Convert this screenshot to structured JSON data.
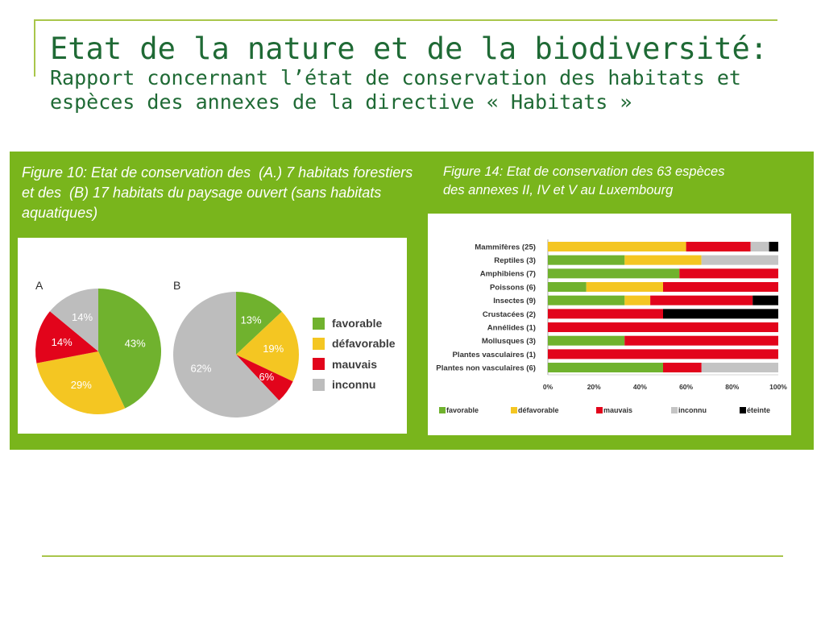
{
  "slide": {
    "title": "Etat de la nature et de la biodiversité:",
    "subtitle_lines": [
      "Rapport concernant l’état de conservation des habitats et",
      "espèces des annexes de la directive « Habitats »"
    ]
  },
  "colors": {
    "title": "#1f6a35",
    "rule": "#a9c64b",
    "panel": "#79b51c"
  },
  "chart_data": [
    {
      "type": "pie",
      "title_lines": [
        "Figure 10: Etat de conservation des  (A.) 7 habitats forestiers",
        "et des  (B) 17 habitats du paysage ouvert (sans habitats",
        "aquatiques)"
      ],
      "categories": [
        "favorable",
        "défavorable",
        "mauvais",
        "inconnu"
      ],
      "colors": [
        "#70b22e",
        "#f4c622",
        "#e2041b",
        "#bdbdbd"
      ],
      "series": [
        {
          "name": "A",
          "values": [
            43,
            29,
            14,
            14
          ],
          "value_labels": [
            "43%",
            "29%",
            "14%",
            "14%"
          ]
        },
        {
          "name": "B",
          "values": [
            13,
            19,
            6,
            62
          ],
          "value_labels": [
            "13%",
            "19%",
            "6%",
            "62%"
          ]
        }
      ],
      "legend": "right"
    },
    {
      "type": "bar",
      "horizontal": true,
      "stacked": true,
      "title_lines": [
        "Figure 14: Etat de conservation des 63 espèces",
        "des annexes II, IV et V au Luxembourg"
      ],
      "categories": [
        "Mammifères (25)",
        "Reptiles (3)",
        "Amphibiens (7)",
        "Poissons (6)",
        "Insectes (9)",
        "Crustacées (2)",
        "Annélides (1)",
        "Mollusques (3)",
        "Plantes vasculaires (1)",
        "Plantes non vasculaires (6)"
      ],
      "series": [
        {
          "name": "favorable",
          "color": "#70b22e",
          "values": [
            0,
            33.3,
            57.1,
            16.7,
            33.3,
            0,
            0,
            33.3,
            0,
            50
          ]
        },
        {
          "name": "défavorable",
          "color": "#f4c622",
          "values": [
            60,
            33.3,
            0,
            33.3,
            11.1,
            0,
            0,
            0,
            0,
            0
          ]
        },
        {
          "name": "mauvais",
          "color": "#e2041b",
          "values": [
            28,
            0,
            42.9,
            50,
            44.4,
            50,
            100,
            66.7,
            100,
            16.7
          ]
        },
        {
          "name": "inconnu",
          "color": "#c4c4c4",
          "values": [
            8,
            33.3,
            0,
            0,
            0,
            0,
            0,
            0,
            0,
            33.3
          ]
        },
        {
          "name": "éteinte",
          "color": "#000000",
          "values": [
            4,
            0,
            0,
            0,
            11.1,
            50,
            0,
            0,
            0,
            0
          ]
        }
      ],
      "xlim": [
        0,
        100
      ],
      "xtick_labels": [
        "0%",
        "20%",
        "40%",
        "60%",
        "80%",
        "100%"
      ],
      "legend": "bottom"
    }
  ]
}
